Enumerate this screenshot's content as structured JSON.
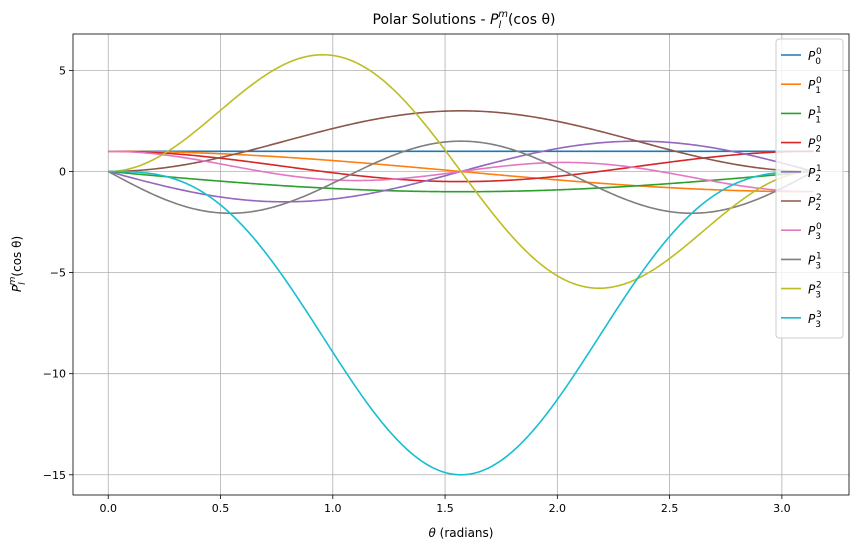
{
  "chart_data": {
    "type": "line",
    "title": {
      "main": "Polar Solutions - ",
      "math_base": "P",
      "math_sub": "l",
      "math_sup": "m",
      "math_rest": "(cos θ)"
    },
    "xlabel": {
      "var": "θ",
      "text": " (radians)"
    },
    "ylabel": {
      "math_base": "P",
      "math_sub": "l",
      "math_sup": "m",
      "math_rest": "(cos θ)"
    },
    "xlim": [
      -0.157,
      3.299
    ],
    "ylim": [
      -16.0,
      6.8
    ],
    "xticks": [
      0.0,
      0.5,
      1.0,
      1.5,
      2.0,
      2.5,
      3.0
    ],
    "xtick_labels": [
      "0.0",
      "0.5",
      "1.0",
      "1.5",
      "2.0",
      "2.5",
      "3.0"
    ],
    "yticks": [
      5,
      0,
      -5,
      -10,
      -15
    ],
    "ytick_labels": [
      "5",
      "0",
      "−5",
      "−10",
      "−15"
    ],
    "grid": true,
    "legend_position": "top-right",
    "x_domain": [
      0,
      3.14159
    ],
    "series": [
      {
        "name": "P00",
        "l": 0,
        "m": 0,
        "label_sub": "0",
        "label_sup": "0",
        "color": "#1f77b4"
      },
      {
        "name": "P10",
        "l": 1,
        "m": 0,
        "label_sub": "1",
        "label_sup": "0",
        "color": "#ff7f0e"
      },
      {
        "name": "P11",
        "l": 1,
        "m": 1,
        "label_sub": "1",
        "label_sup": "1",
        "color": "#2ca02c"
      },
      {
        "name": "P20",
        "l": 2,
        "m": 0,
        "label_sub": "2",
        "label_sup": "0",
        "color": "#d62728"
      },
      {
        "name": "P21",
        "l": 2,
        "m": 1,
        "label_sub": "2",
        "label_sup": "1",
        "color": "#9467bd"
      },
      {
        "name": "P22",
        "l": 2,
        "m": 2,
        "label_sub": "2",
        "label_sup": "2",
        "color": "#8c564b"
      },
      {
        "name": "P30",
        "l": 3,
        "m": 0,
        "label_sub": "3",
        "label_sup": "0",
        "color": "#e377c2"
      },
      {
        "name": "P31",
        "l": 3,
        "m": 1,
        "label_sub": "3",
        "label_sup": "1",
        "color": "#7f7f7f"
      },
      {
        "name": "P32",
        "l": 3,
        "m": 2,
        "label_sub": "3",
        "label_sup": "2",
        "color": "#bcbd22"
      },
      {
        "name": "P33",
        "l": 3,
        "m": 3,
        "label_sub": "3",
        "label_sup": "3",
        "color": "#17becf"
      }
    ]
  }
}
